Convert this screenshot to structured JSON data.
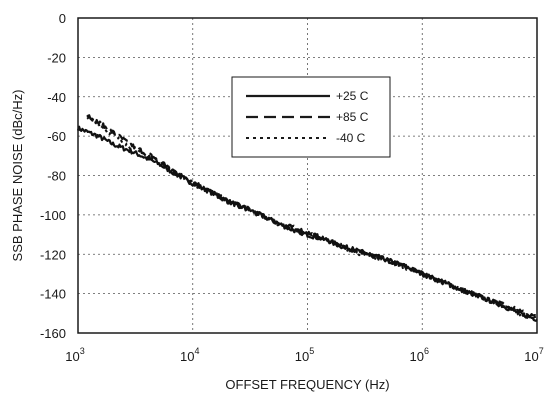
{
  "chart_data": {
    "type": "line",
    "title": "",
    "xlabel": "OFFSET FREQUENCY (Hz)",
    "ylabel": "SSB PHASE NOISE (dBc/Hz)",
    "xscale": "log",
    "xlim": [
      1000,
      10000000
    ],
    "ylim": [
      -160,
      0
    ],
    "grid": true,
    "legend_position": "center",
    "x_ticks": [
      {
        "base": "10",
        "exp": "3"
      },
      {
        "base": "10",
        "exp": "4"
      },
      {
        "base": "10",
        "exp": "5"
      },
      {
        "base": "10",
        "exp": "6"
      },
      {
        "base": "10",
        "exp": "7"
      }
    ],
    "y_ticks": [
      "0",
      "-20",
      "-40",
      "-60",
      "-80",
      "-100",
      "-120",
      "-140",
      "-160"
    ],
    "series": [
      {
        "name": "+25 C",
        "style": "solid",
        "x": [
          1000,
          1500,
          2000,
          3000,
          5000,
          7000,
          10000,
          15000,
          20000,
          30000,
          50000,
          70000,
          100000,
          150000,
          200000,
          300000,
          500000,
          700000,
          1000000,
          1500000,
          2000000,
          3000000,
          5000000,
          7000000,
          10000000
        ],
        "y": [
          -56,
          -60,
          -64,
          -68,
          -74,
          -79,
          -84,
          -89,
          -93,
          -97,
          -103,
          -107,
          -110,
          -113,
          -116,
          -119,
          -123,
          -126,
          -130,
          -134,
          -137,
          -141,
          -146,
          -150,
          -153
        ]
      },
      {
        "name": "+85 C",
        "style": "dashed",
        "x": [
          1200,
          1500,
          2000,
          3000,
          5000,
          7000,
          10000,
          15000,
          20000,
          30000,
          50000,
          70000,
          100000,
          150000,
          200000,
          300000,
          500000,
          700000,
          1000000,
          1500000,
          2000000,
          3000000,
          5000000,
          7000000,
          10000000
        ],
        "y": [
          -49,
          -53,
          -58,
          -65,
          -72,
          -78,
          -83,
          -89,
          -93,
          -97,
          -103,
          -106,
          -109,
          -113,
          -116,
          -119,
          -123,
          -126,
          -130,
          -134,
          -137,
          -141,
          -145,
          -149,
          -152
        ]
      },
      {
        "name": "-40 C",
        "style": "dotted",
        "x": [
          1200,
          1500,
          2000,
          3000,
          5000,
          7000,
          10000,
          15000,
          20000,
          30000,
          50000,
          70000,
          100000,
          150000,
          200000,
          300000,
          500000,
          700000,
          1000000,
          1500000,
          2000000,
          3000000,
          5000000,
          7000000,
          10000000
        ],
        "y": [
          -50,
          -54,
          -59,
          -66,
          -73,
          -78,
          -84,
          -89,
          -93,
          -97,
          -103,
          -107,
          -110,
          -113,
          -116,
          -120,
          -123,
          -127,
          -130,
          -134,
          -137,
          -141,
          -146,
          -150,
          -153
        ]
      }
    ]
  }
}
